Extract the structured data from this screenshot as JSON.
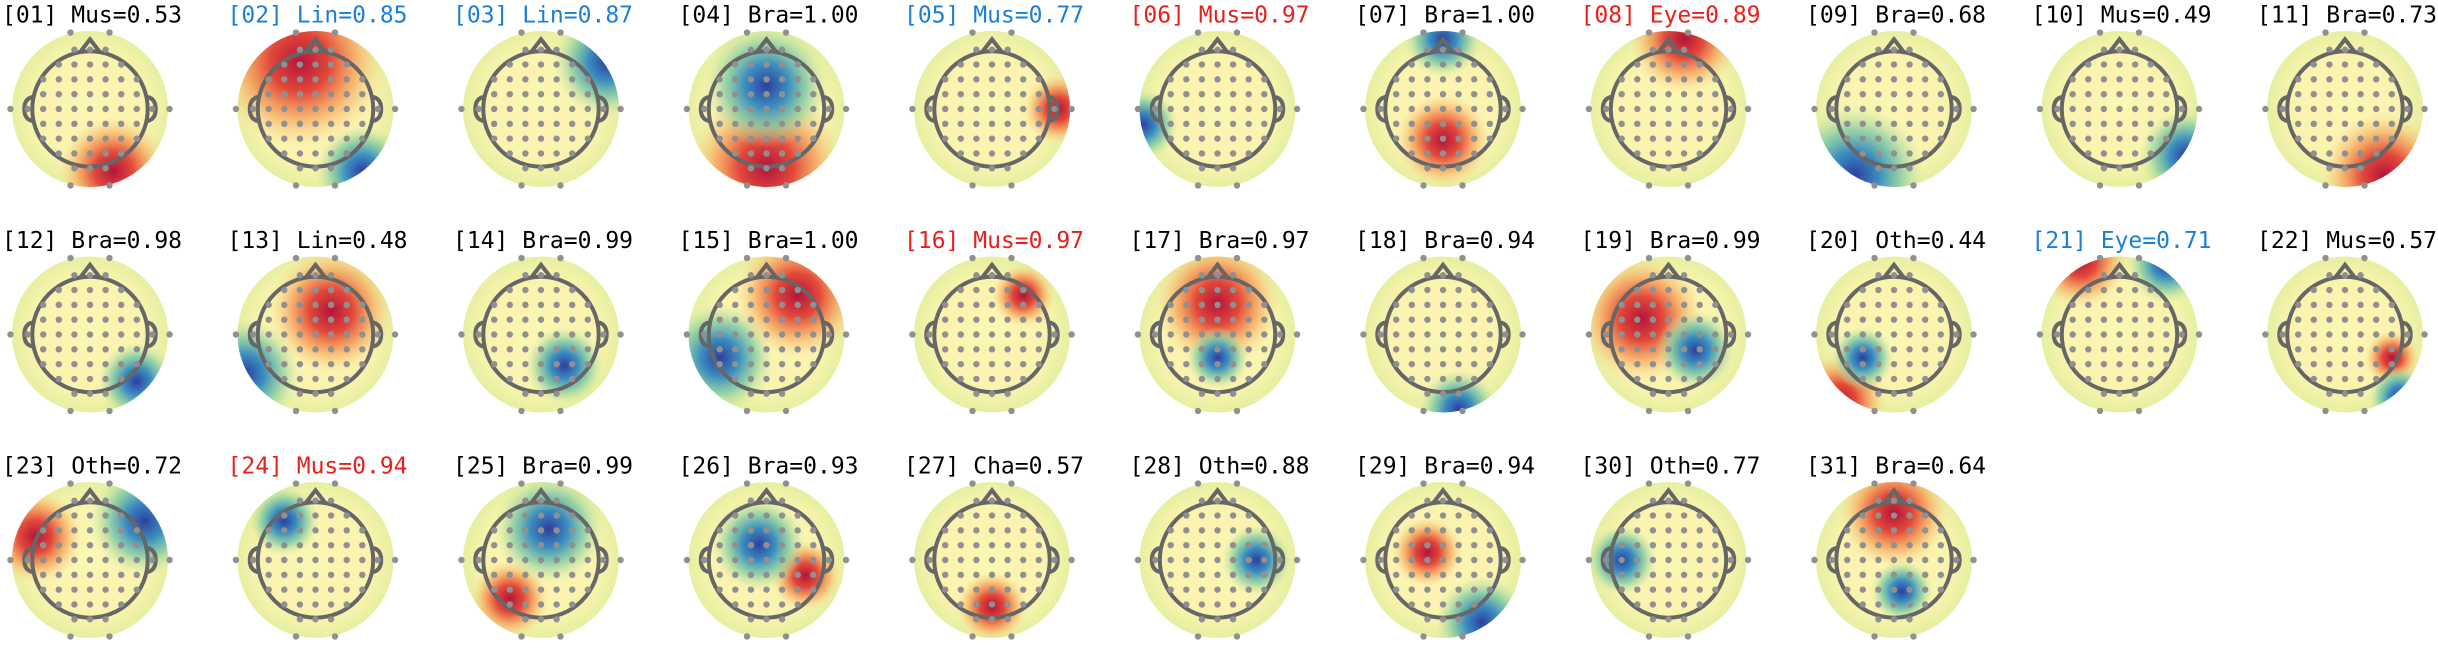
{
  "panels": [
    {
      "label": "[01] Mus=0.53",
      "color": "#000000"
    },
    {
      "label": "[02] Lin=0.85",
      "color": "#1a7fd9"
    },
    {
      "label": "[03] Lin=0.87",
      "color": "#1a7fd9"
    },
    {
      "label": "[04] Bra=1.00",
      "color": "#000000"
    },
    {
      "label": "[05] Mus=0.77",
      "color": "#1a7fd9"
    },
    {
      "label": "[06] Mus=0.97",
      "color": "#e8201c"
    },
    {
      "label": "[07] Bra=1.00",
      "color": "#000000"
    },
    {
      "label": "[08] Eye=0.89",
      "color": "#e8201c"
    },
    {
      "label": "[09] Bra=0.68",
      "color": "#000000"
    },
    {
      "label": "[10] Mus=0.49",
      "color": "#000000"
    },
    {
      "label": "[11] Bra=0.73",
      "color": "#000000"
    },
    {
      "label": "[12] Bra=0.98",
      "color": "#000000"
    },
    {
      "label": "[13] Lin=0.48",
      "color": "#000000"
    },
    {
      "label": "[14] Bra=0.99",
      "color": "#000000"
    },
    {
      "label": "[15] Bra=1.00",
      "color": "#000000"
    },
    {
      "label": "[16] Mus=0.97",
      "color": "#e8201c"
    },
    {
      "label": "[17] Bra=0.97",
      "color": "#000000"
    },
    {
      "label": "[18] Bra=0.94",
      "color": "#000000"
    },
    {
      "label": "[19] Bra=0.99",
      "color": "#000000"
    },
    {
      "label": "[20] Oth=0.44",
      "color": "#000000"
    },
    {
      "label": "[21] Eye=0.71",
      "color": "#1a7fd9"
    },
    {
      "label": "[22] Mus=0.57",
      "color": "#000000"
    },
    {
      "label": "[23] Oth=0.72",
      "color": "#000000"
    },
    {
      "label": "[24] Mus=0.94",
      "color": "#e8201c"
    },
    {
      "label": "[25] Bra=0.99",
      "color": "#000000"
    },
    {
      "label": "[26] Bra=0.93",
      "color": "#000000"
    },
    {
      "label": "[27] Cha=0.57",
      "color": "#000000"
    },
    {
      "label": "[28] Oth=0.88",
      "color": "#000000"
    },
    {
      "label": "[29] Bra=0.94",
      "color": "#000000"
    },
    {
      "label": "[30] Oth=0.77",
      "color": "#000000"
    },
    {
      "label": "[31] Bra=0.64",
      "color": "#000000"
    }
  ]
}
